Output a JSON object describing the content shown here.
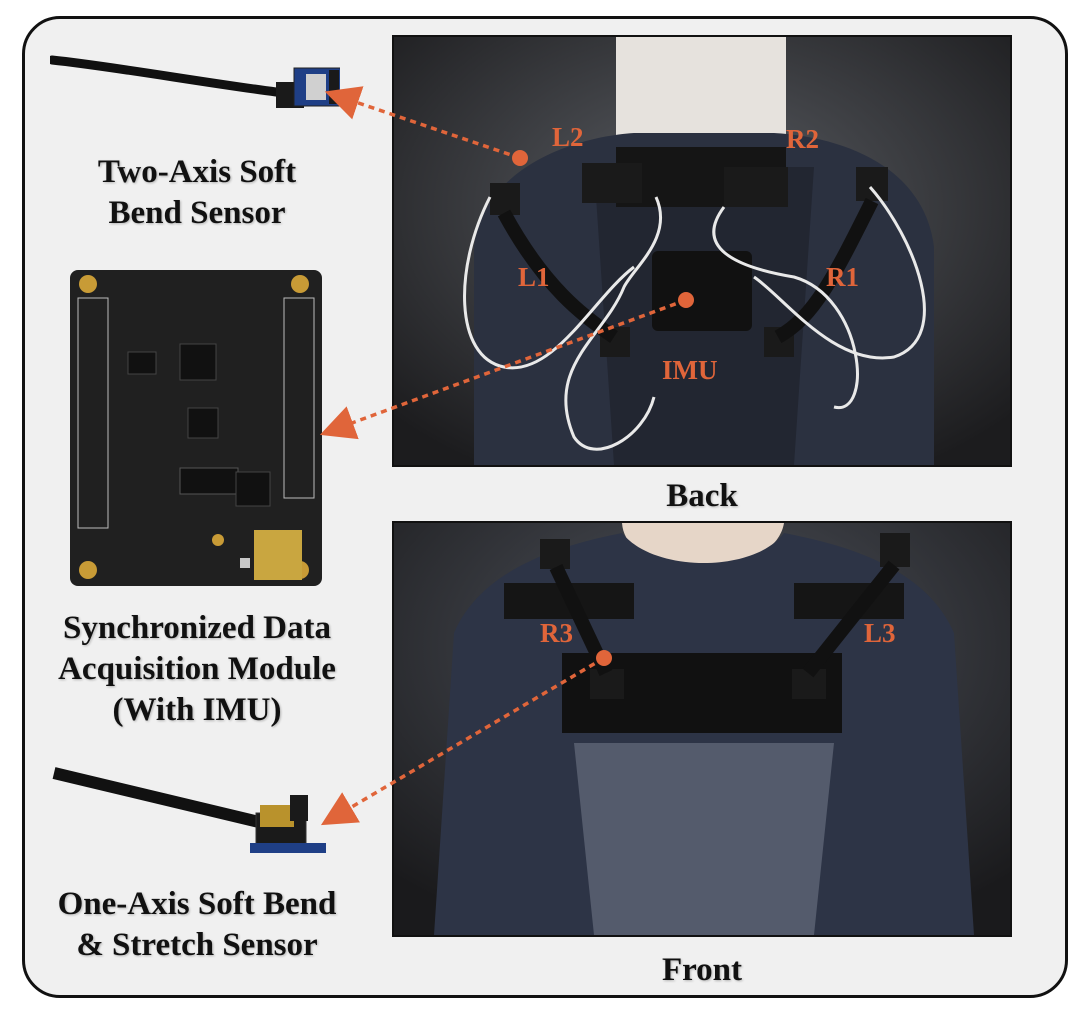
{
  "colors": {
    "accent": "#e0653a",
    "frame_border": "#111111",
    "panel_bg": "#f0f0f0"
  },
  "captions": {
    "two_axis": "Two-Axis Soft\nBend Sensor",
    "module": "Synchronized Data\nAcquisition Module\n(With IMU)",
    "one_axis": "One-Axis Soft Bend\n& Stretch Sensor",
    "back": "Back",
    "front": "Front"
  },
  "back_labels": {
    "l2": "L2",
    "r2": "R2",
    "l1": "L1",
    "r1": "R1",
    "imu": "IMU"
  },
  "front_labels": {
    "r3": "R3",
    "l3": "L3"
  }
}
